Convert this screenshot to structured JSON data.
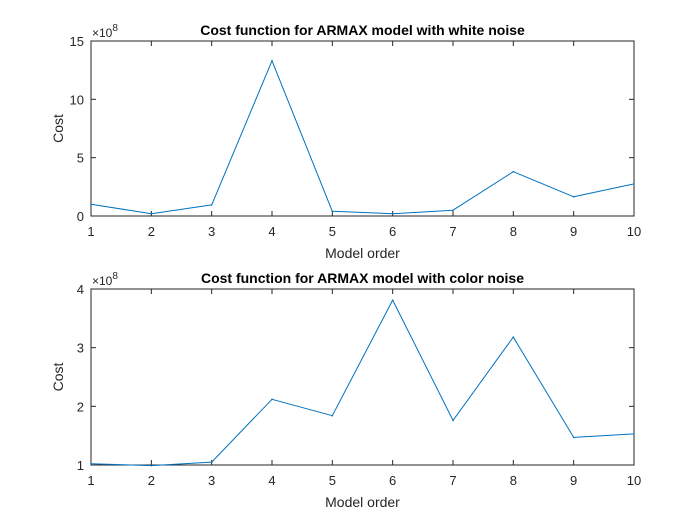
{
  "chart_data": [
    {
      "type": "line",
      "title": "Cost function for ARMAX model with white noise",
      "xlabel": "Model order",
      "ylabel": "Cost",
      "exponent_label": "×10",
      "exponent_power": "8",
      "scale_factor": 100000000,
      "xlim": [
        1,
        10
      ],
      "ylim": [
        0,
        15
      ],
      "xticks": [
        1,
        2,
        3,
        4,
        5,
        6,
        7,
        8,
        9,
        10
      ],
      "yticks": [
        0,
        5,
        10,
        15
      ],
      "grid": false,
      "line_color": "#0072BD",
      "series": [
        {
          "x": [
            1,
            2,
            3,
            4,
            5,
            6,
            7,
            8,
            9,
            10
          ],
          "values": [
            1.0,
            0.2,
            0.95,
            13.3,
            0.4,
            0.2,
            0.5,
            3.8,
            1.65,
            2.75
          ]
        }
      ]
    },
    {
      "type": "line",
      "title": "Cost function for ARMAX model with color noise",
      "xlabel": "Model order",
      "ylabel": "Cost",
      "exponent_label": "×10",
      "exponent_power": "8",
      "scale_factor": 100000000,
      "xlim": [
        1,
        10
      ],
      "ylim": [
        1,
        4
      ],
      "xticks": [
        1,
        2,
        3,
        4,
        5,
        6,
        7,
        8,
        9,
        10
      ],
      "yticks": [
        1,
        2,
        3,
        4
      ],
      "grid": false,
      "line_color": "#0072BD",
      "series": [
        {
          "x": [
            1,
            2,
            3,
            4,
            5,
            6,
            7,
            8,
            9,
            10
          ],
          "values": [
            1.02,
            0.99,
            1.05,
            2.12,
            1.84,
            3.81,
            1.76,
            3.18,
            1.47,
            1.53
          ]
        }
      ]
    }
  ]
}
